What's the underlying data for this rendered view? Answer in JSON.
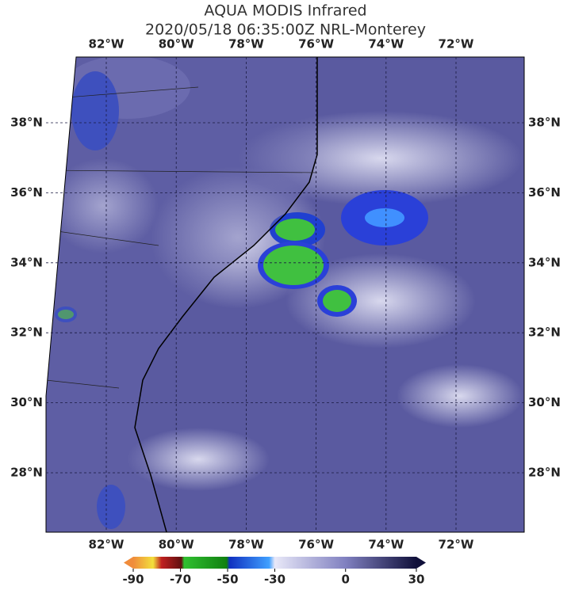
{
  "header": {
    "title": "AQUA MODIS Infrared",
    "subtitle": "2020/05/18 06:35:00Z NRL-Monterey"
  },
  "map": {
    "lon_labels": [
      "82°W",
      "80°W",
      "78°W",
      "76°W",
      "74°W",
      "72°W"
    ],
    "lat_labels": [
      "38°N",
      "36°N",
      "34°N",
      "32°N",
      "30°N",
      "28°N"
    ]
  },
  "colorbar": {
    "range": [
      -90,
      30
    ],
    "ticks": [
      -90,
      -70,
      -50,
      -30,
      0,
      30
    ]
  }
}
